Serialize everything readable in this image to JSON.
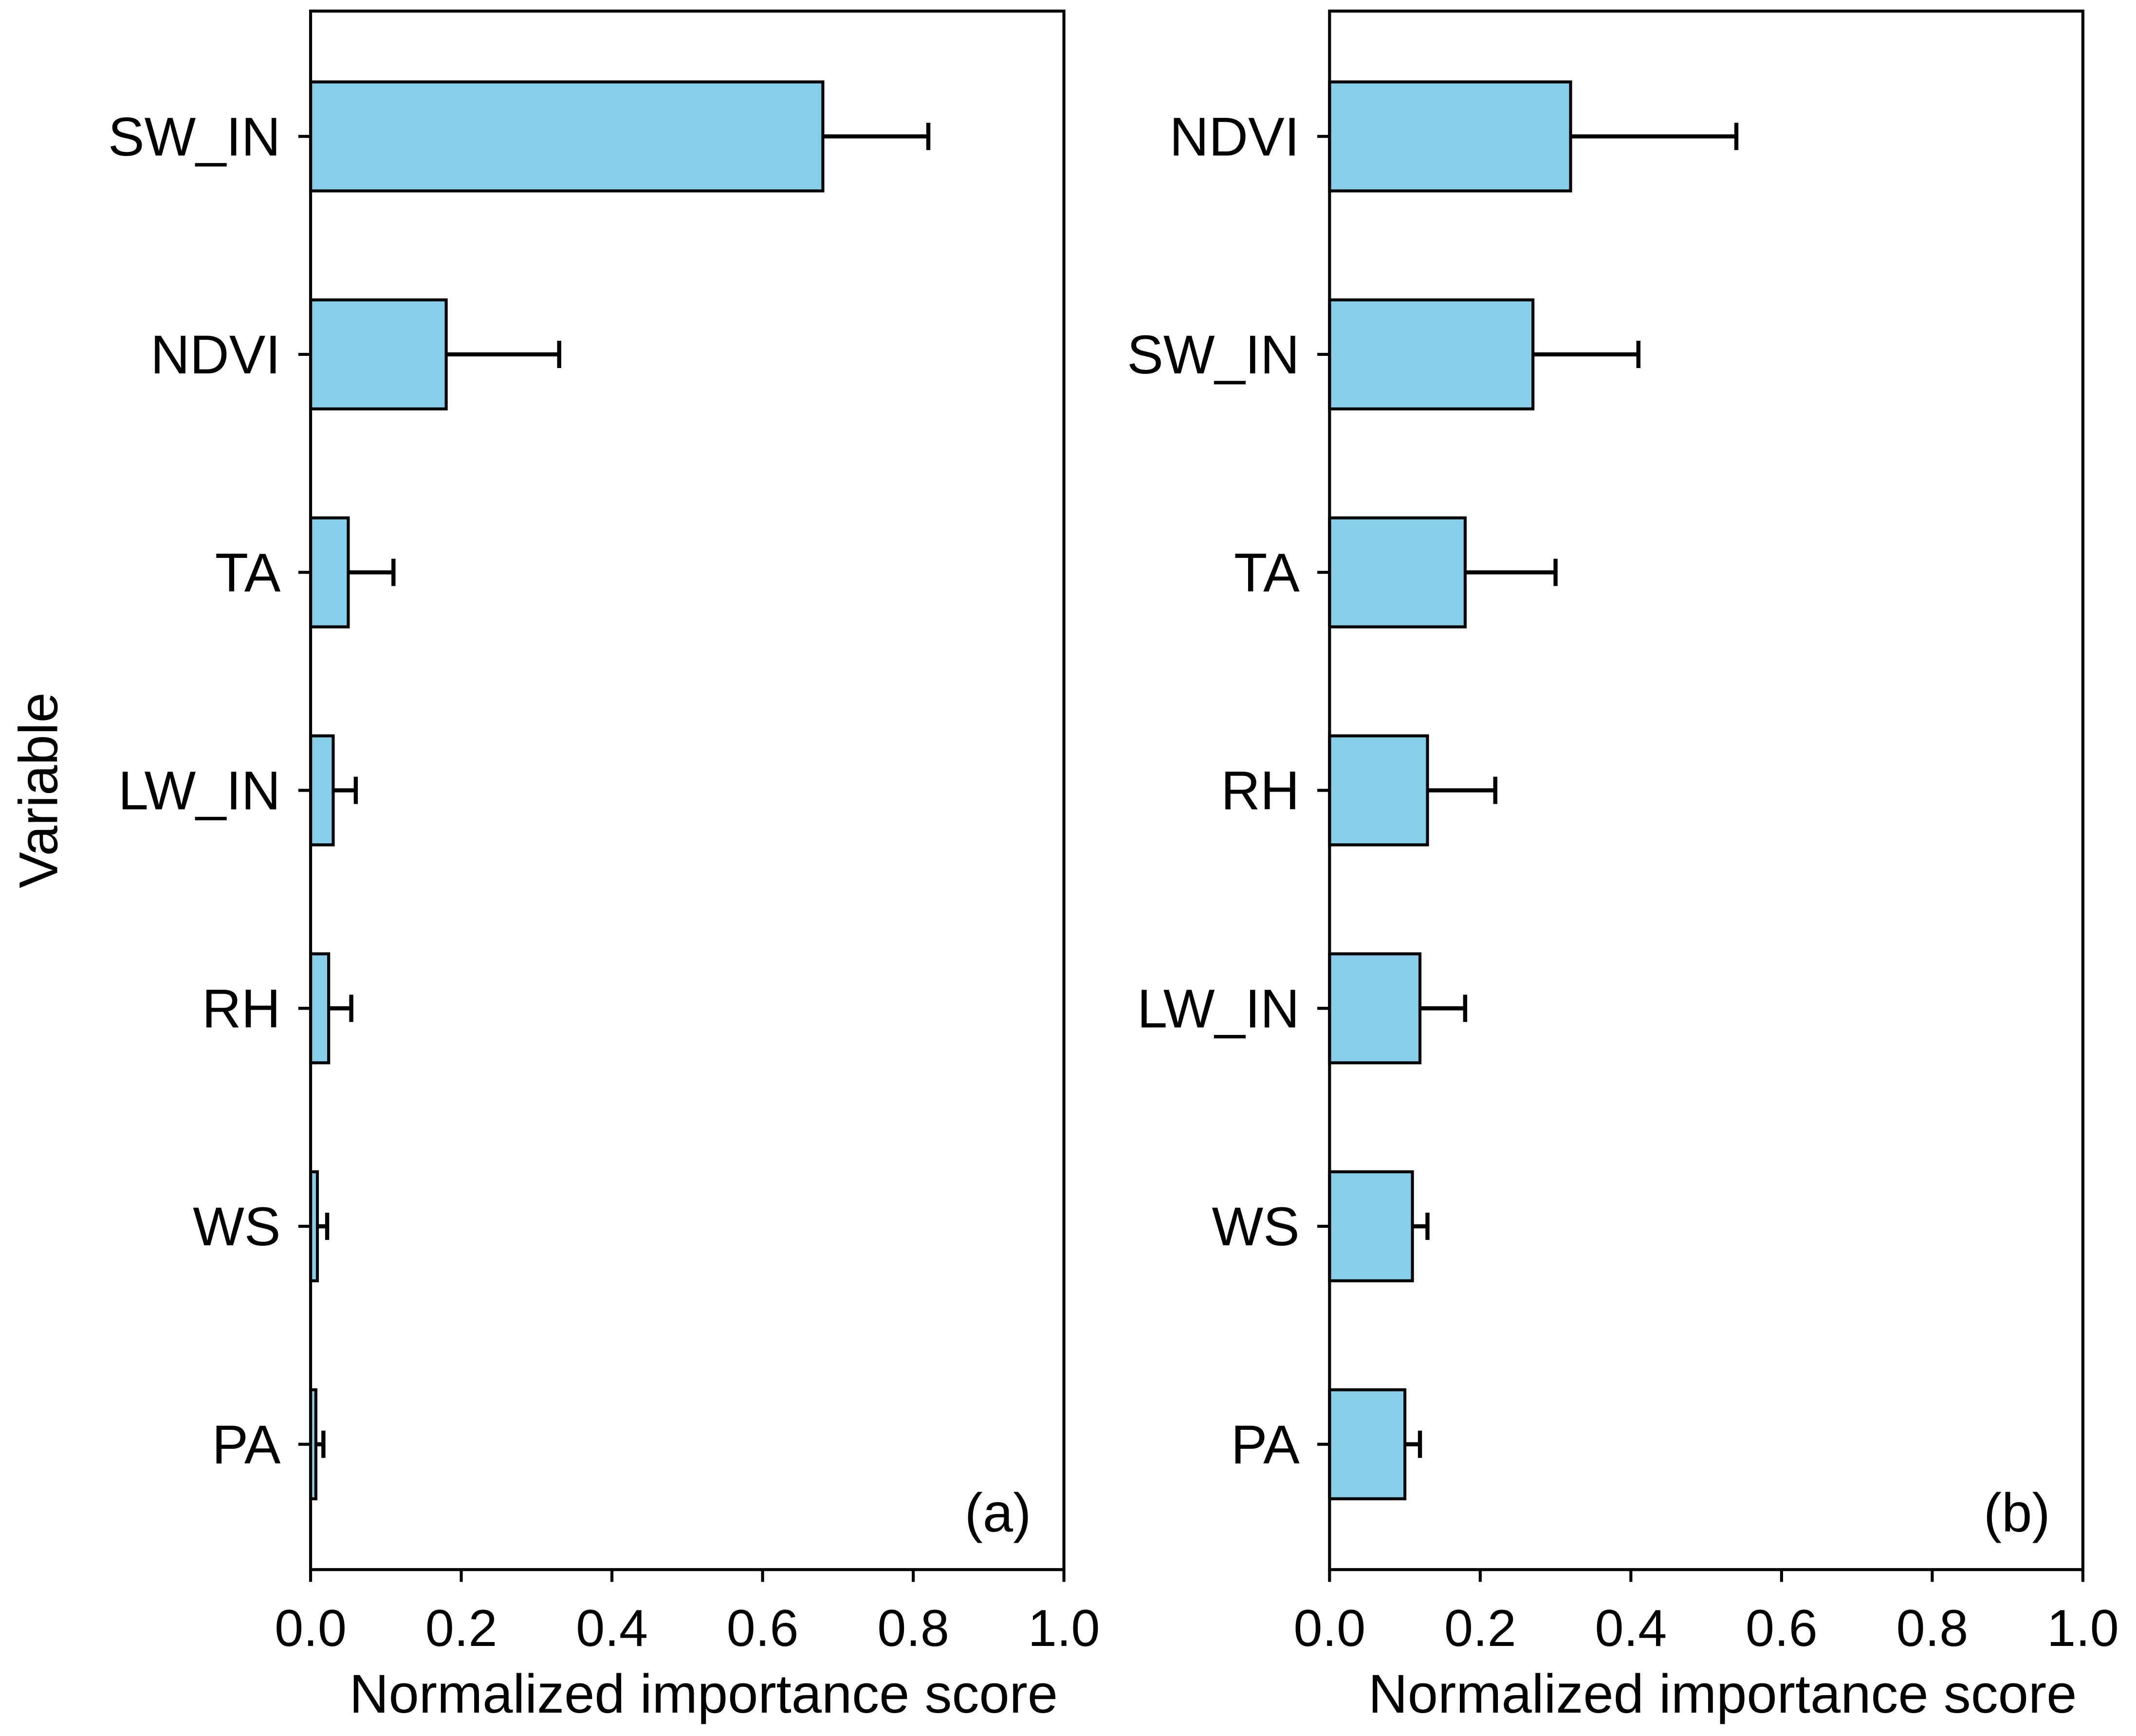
{
  "chart_data": [
    {
      "type": "bar",
      "orientation": "horizontal",
      "categories": [
        "SW_IN",
        "NDVI",
        "TA",
        "LW_IN",
        "RH",
        "WS",
        "PA"
      ],
      "values": [
        0.68,
        0.18,
        0.05,
        0.03,
        0.024,
        0.009,
        0.007
      ],
      "errors": [
        0.14,
        0.15,
        0.06,
        0.03,
        0.03,
        0.013,
        0.01
      ],
      "color": "#87ceeb",
      "xlim": [
        0,
        1
      ],
      "xticks": [
        {
          "value": 0,
          "label": "0.0"
        },
        {
          "value": 0.2,
          "label": "0.2"
        },
        {
          "value": 0.4,
          "label": "0.4"
        },
        {
          "value": 0.6,
          "label": "0.6"
        },
        {
          "value": 0.8,
          "label": "0.8"
        },
        {
          "value": 1,
          "label": "1.0"
        }
      ],
      "xlabel": "Normalized importance score",
      "ylabel": "Variable",
      "panel_label": "(a)"
    },
    {
      "type": "bar",
      "orientation": "horizontal",
      "categories": [
        "NDVI",
        "SW_IN",
        "TA",
        "RH",
        "LW_IN",
        "WS",
        "PA"
      ],
      "values": [
        0.32,
        0.27,
        0.18,
        0.13,
        0.12,
        0.11,
        0.1
      ],
      "errors": [
        0.22,
        0.14,
        0.12,
        0.09,
        0.06,
        0.02,
        0.02
      ],
      "color": "#87ceeb",
      "xlim": [
        0,
        1
      ],
      "xticks": [
        {
          "value": 0,
          "label": "0.0"
        },
        {
          "value": 0.2,
          "label": "0.2"
        },
        {
          "value": 0.4,
          "label": "0.4"
        },
        {
          "value": 0.6,
          "label": "0.6"
        },
        {
          "value": 0.8,
          "label": "0.8"
        },
        {
          "value": 1,
          "label": "1.0"
        }
      ],
      "xlabel": "Normalized importance score",
      "panel_label": "(b)"
    }
  ]
}
